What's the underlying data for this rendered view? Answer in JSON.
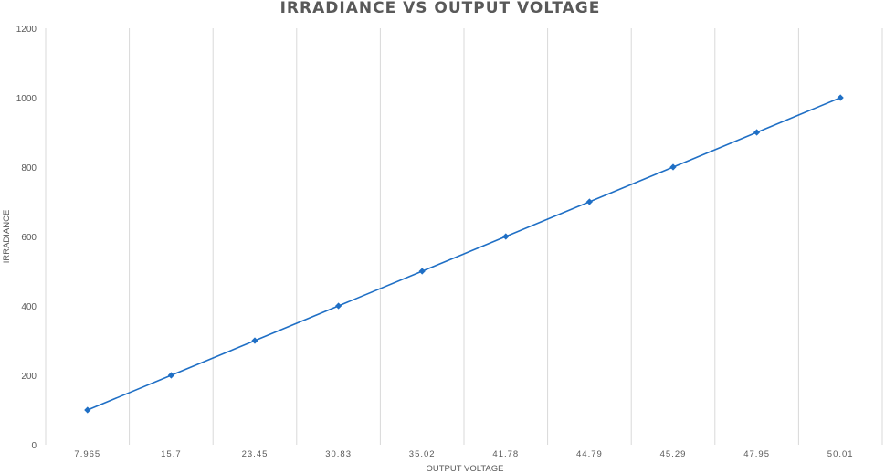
{
  "chart_data": {
    "type": "line",
    "title": "IRRADIANCE VS OUTPUT VOLTAGE",
    "xlabel": "OUTPUT VOLTAGE",
    "ylabel": "IRRADIANCE",
    "categories": [
      "7.965",
      "15.7",
      "23.45",
      "30.83",
      "35.02",
      "41.78",
      "44.79",
      "45.29",
      "47.95",
      "50.01"
    ],
    "series": [
      {
        "values": [
          100,
          200,
          300,
          400,
          500,
          600,
          700,
          800,
          900,
          1000
        ],
        "color": "#1f6fc5"
      }
    ],
    "ylim": [
      0,
      1200
    ],
    "yticks": [
      0,
      200,
      400,
      600,
      800,
      1000,
      1200
    ],
    "grid": "vertical",
    "legend": "none"
  }
}
